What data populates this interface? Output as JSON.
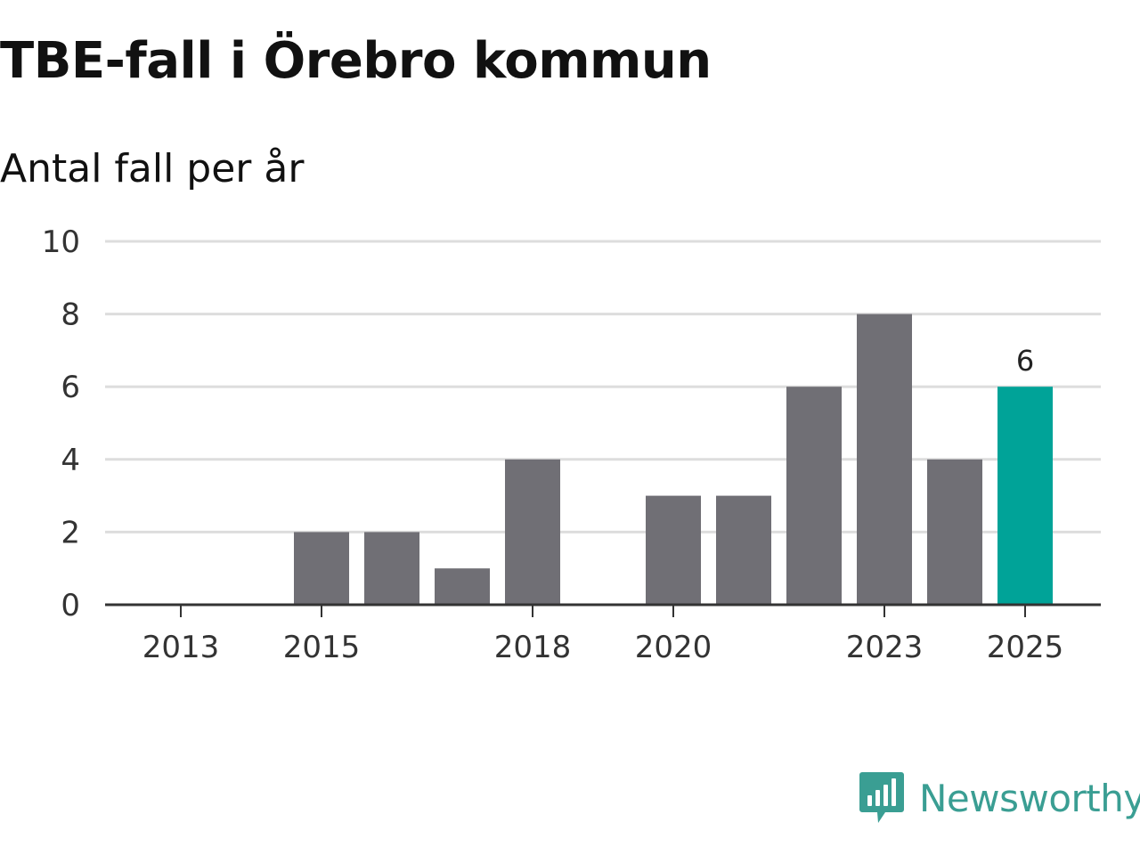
{
  "chart_data": {
    "type": "bar",
    "title": "TBE-fall i Örebro kommun",
    "subtitle": "Antal fall per år",
    "xlabel": "",
    "ylabel": "",
    "categories": [
      "2013",
      "2014",
      "2015",
      "2016",
      "2017",
      "2018",
      "2019",
      "2020",
      "2021",
      "2022",
      "2023",
      "2024",
      "2025"
    ],
    "values": [
      0,
      0,
      2,
      2,
      1,
      4,
      0,
      3,
      3,
      6,
      8,
      4,
      6
    ],
    "x_tick_labels": [
      "2013",
      "2015",
      "2018",
      "2020",
      "2023",
      "2025"
    ],
    "y_ticks": [
      0,
      2,
      4,
      6,
      8,
      10
    ],
    "ylim": [
      0,
      10
    ],
    "grid": true,
    "highlight": {
      "category": "2025",
      "value": 6,
      "label": "6"
    },
    "colors": {
      "bar": "#706f75",
      "highlight": "#00a398",
      "grid": "#dddddd",
      "axis": "#333333"
    }
  },
  "brand": {
    "name": "Newsworthy",
    "icon": "newsworthy-logo-icon",
    "color": "#3a9e93"
  }
}
